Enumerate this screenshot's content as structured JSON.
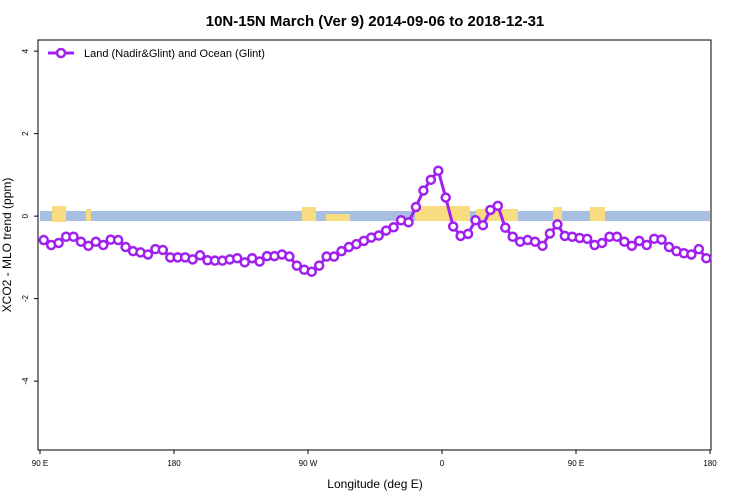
{
  "chart_data": {
    "type": "line",
    "title": "10N-15N March (Ver 9)   2014-09-06 to 2018-12-31",
    "x_label": "Longitude (deg E)",
    "y_label": "XCO2 - MLO trend (ppm)",
    "legend_position": "top-left",
    "xlim": [
      90,
      540
    ],
    "xticks": [
      {
        "value": 90,
        "label": "90 E"
      },
      180,
      {
        "value": 270,
        "label": "90 W"
      },
      {
        "value": 360,
        "label": "0"
      },
      {
        "value": 450,
        "label": "90 E"
      },
      {
        "value": 540,
        "label": "180"
      }
    ],
    "ylim": [
      -5.67,
      4.27
    ],
    "yticks": [
      -4,
      -2,
      0,
      2,
      4
    ],
    "x": [
      92.5,
      97.5,
      102.5,
      107.5,
      112.5,
      117.5,
      122.5,
      127.5,
      132.5,
      137.5,
      142.5,
      147.5,
      152.5,
      157.5,
      162.5,
      167.5,
      172.5,
      177.5,
      182.5,
      187.5,
      192.5,
      197.5,
      202.5,
      207.5,
      212.5,
      217.5,
      222.5,
      227.5,
      232.5,
      237.5,
      242.5,
      247.5,
      252.5,
      257.5,
      262.5,
      267.5,
      272.5,
      277.5,
      282.5,
      287.5,
      292.5,
      297.5,
      302.5,
      307.5,
      312.5,
      317.5,
      322.5,
      327.5,
      332.5,
      337.5,
      342.5,
      347.5,
      352.5,
      357.5,
      362.5,
      367.5,
      372.5,
      377.5,
      382.5,
      387.5,
      392.5,
      397.5,
      402.5,
      407.5,
      412.5,
      417.5,
      422.5,
      427.5,
      432.5,
      437.5,
      442.5,
      447.5,
      452.5,
      457.5,
      462.5,
      467.5,
      472.5,
      477.5,
      482.5,
      487.5,
      492.5,
      497.5,
      502.5,
      507.5,
      512.5,
      517.5,
      522.5,
      527.5,
      532.5,
      537.5
    ],
    "series": [
      {
        "name": "Land (Nadir&Glint) and Ocean (Glint)",
        "color": "#a020f0",
        "values": [
          -0.58,
          -0.7,
          -0.65,
          -0.5,
          -0.5,
          -0.62,
          -0.72,
          -0.62,
          -0.7,
          -0.57,
          -0.58,
          -0.75,
          -0.85,
          -0.88,
          -0.93,
          -0.8,
          -0.82,
          -1.0,
          -1.0,
          -1.0,
          -1.05,
          -0.95,
          -1.07,
          -1.08,
          -1.08,
          -1.05,
          -1.02,
          -1.12,
          -1.02,
          -1.1,
          -0.97,
          -0.97,
          -0.93,
          -0.98,
          -1.2,
          -1.3,
          -1.35,
          -1.2,
          -0.98,
          -0.98,
          -0.85,
          -0.75,
          -0.68,
          -0.6,
          -0.52,
          -0.47,
          -0.35,
          -0.27,
          -0.1,
          -0.15,
          0.22,
          0.62,
          0.88,
          1.1,
          0.45,
          -0.25,
          -0.48,
          -0.43,
          -0.1,
          -0.22,
          0.15,
          0.25,
          -0.28,
          -0.5,
          -0.62,
          -0.58,
          -0.62,
          -0.72,
          -0.42,
          -0.2,
          -0.48,
          -0.5,
          -0.53,
          -0.55,
          -0.7,
          -0.65,
          -0.5,
          -0.5,
          -0.62,
          -0.72,
          -0.6,
          -0.7,
          -0.55,
          -0.57,
          -0.75,
          -0.85,
          -0.9,
          -0.93,
          -0.8,
          -1.02
        ]
      }
    ]
  }
}
